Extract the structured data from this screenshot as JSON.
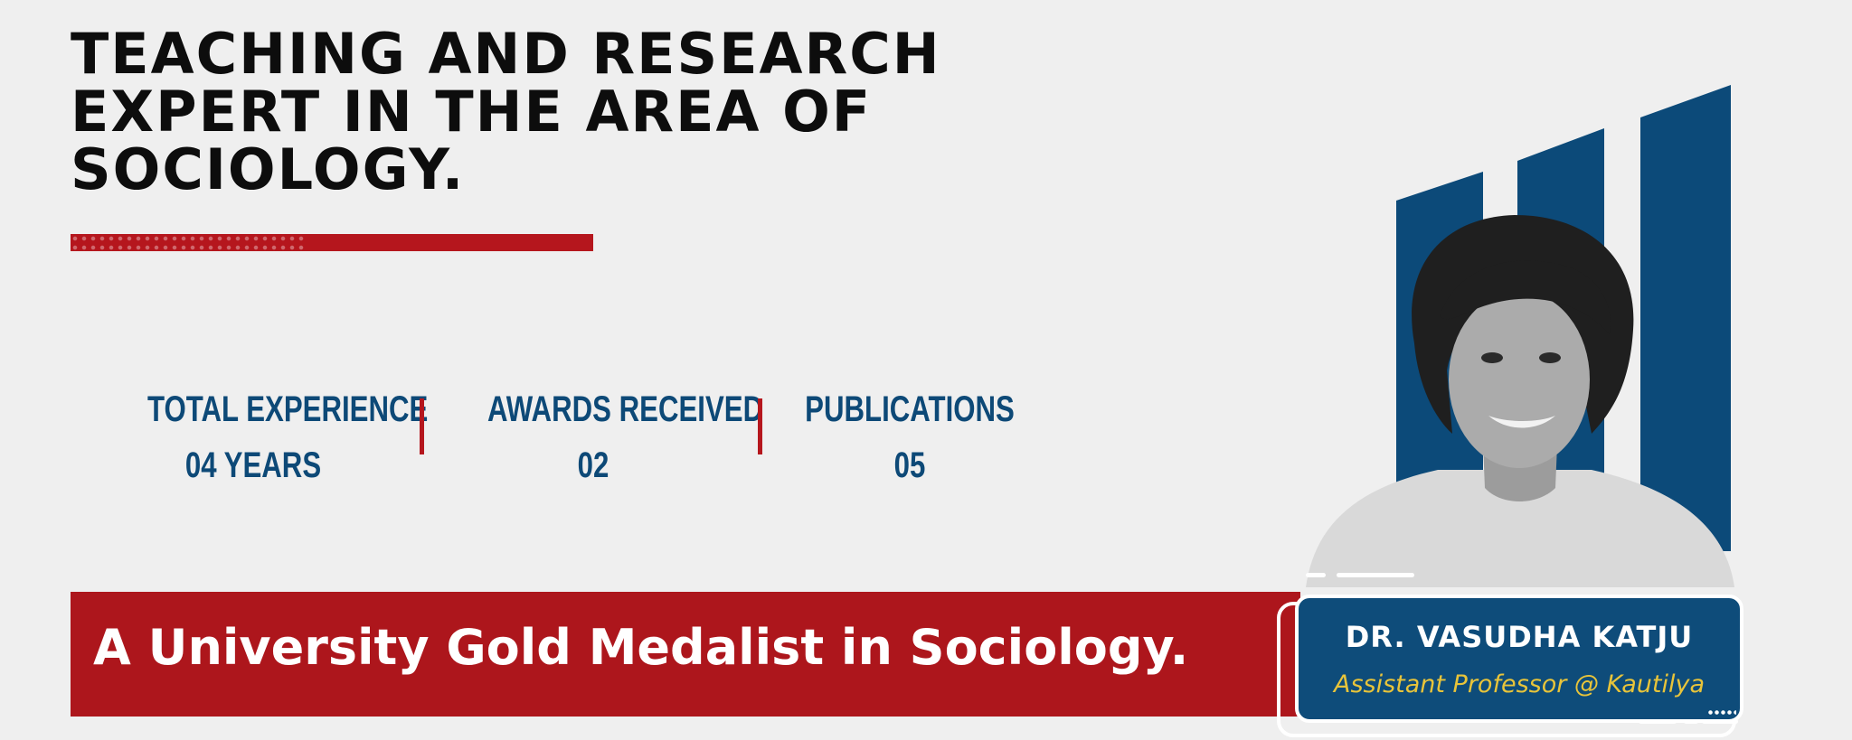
{
  "headline": {
    "lines": [
      "TEACHING AND RESEARCH",
      "EXPERT IN THE AREA OF",
      "SOCIOLOGY."
    ]
  },
  "stats": [
    {
      "label": "TOTAL EXPERIENCE",
      "value": "04 YEARS"
    },
    {
      "label": "AWARDS RECEIVED",
      "value": "02"
    },
    {
      "label": "PUBLICATIONS",
      "value": "05"
    }
  ],
  "banner": {
    "text": "A University Gold Medalist in Sociology."
  },
  "profile": {
    "name": "DR. VASUDHA KATJU",
    "title": "Assistant Professor @ Kautilya"
  },
  "colors": {
    "background": "#efefef",
    "accent_red": "#b5161d",
    "navy": "#0d4977",
    "gold_text": "#e8c43a",
    "headline_text": "#0d0d0d"
  },
  "icons": {
    "photo": "portrait-photo"
  }
}
